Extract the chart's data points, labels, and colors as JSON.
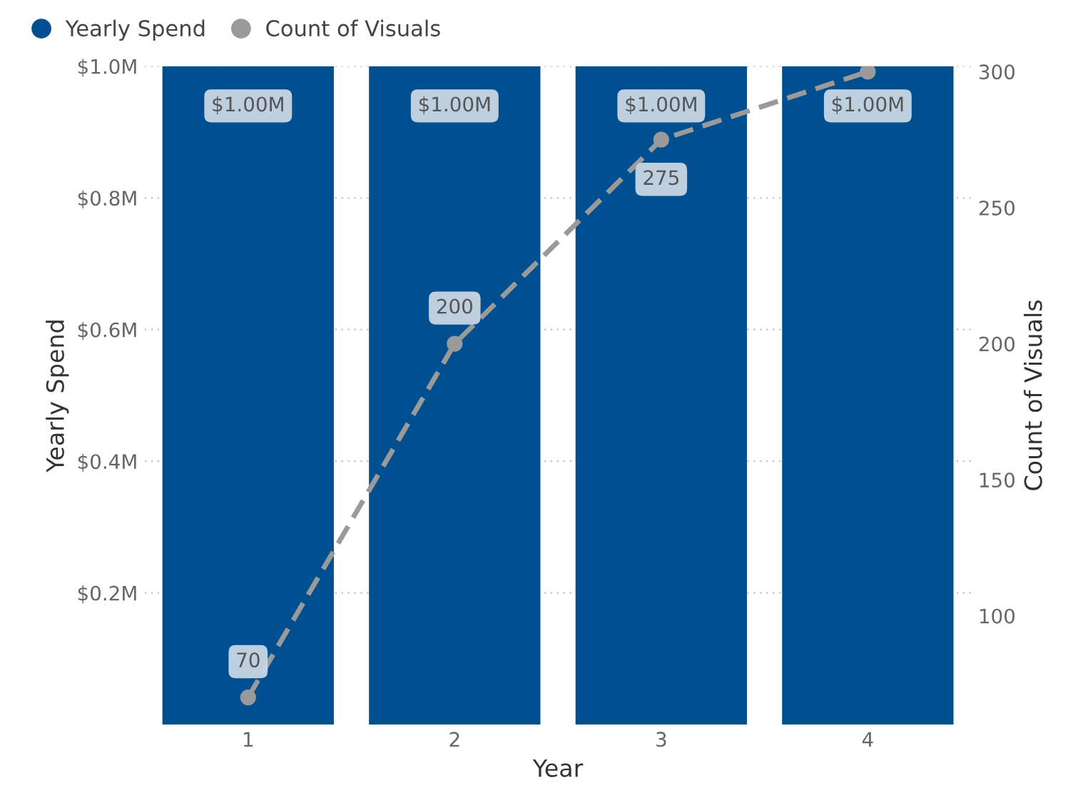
{
  "chart_data": {
    "type": "bar",
    "xlabel": "Year",
    "ylabel": "Yearly Spend",
    "y2label": "Count of Visuals",
    "categories": [
      "1",
      "2",
      "3",
      "4"
    ],
    "series": [
      {
        "name": "Yearly Spend",
        "color": "#005091",
        "values": [
          1000000,
          1000000,
          1000000,
          1000000
        ],
        "value_labels": [
          "$1.00M",
          "$1.00M",
          "$1.00M",
          "$1.00M"
        ]
      },
      {
        "name": "Count of Visuals",
        "type": "line",
        "axis": "y2",
        "color": "#9a9a9a",
        "marker": "circle",
        "line_style": "dashed",
        "values": [
          70,
          200,
          275,
          300
        ],
        "value_labels": [
          "70",
          "200",
          "275",
          null
        ]
      }
    ],
    "ylim": [
      0,
      1000000
    ],
    "yticks": [
      {
        "value": 200000,
        "label": "$0.2M"
      },
      {
        "value": 400000,
        "label": "$0.4M"
      },
      {
        "value": 600000,
        "label": "$0.6M"
      },
      {
        "value": 800000,
        "label": "$0.8M"
      },
      {
        "value": 1000000,
        "label": "$1.0M"
      }
    ],
    "y2lim": [
      60,
      302
    ],
    "y2ticks": [
      100,
      150,
      200,
      250,
      300
    ],
    "grid": "y",
    "legend": "top left"
  }
}
